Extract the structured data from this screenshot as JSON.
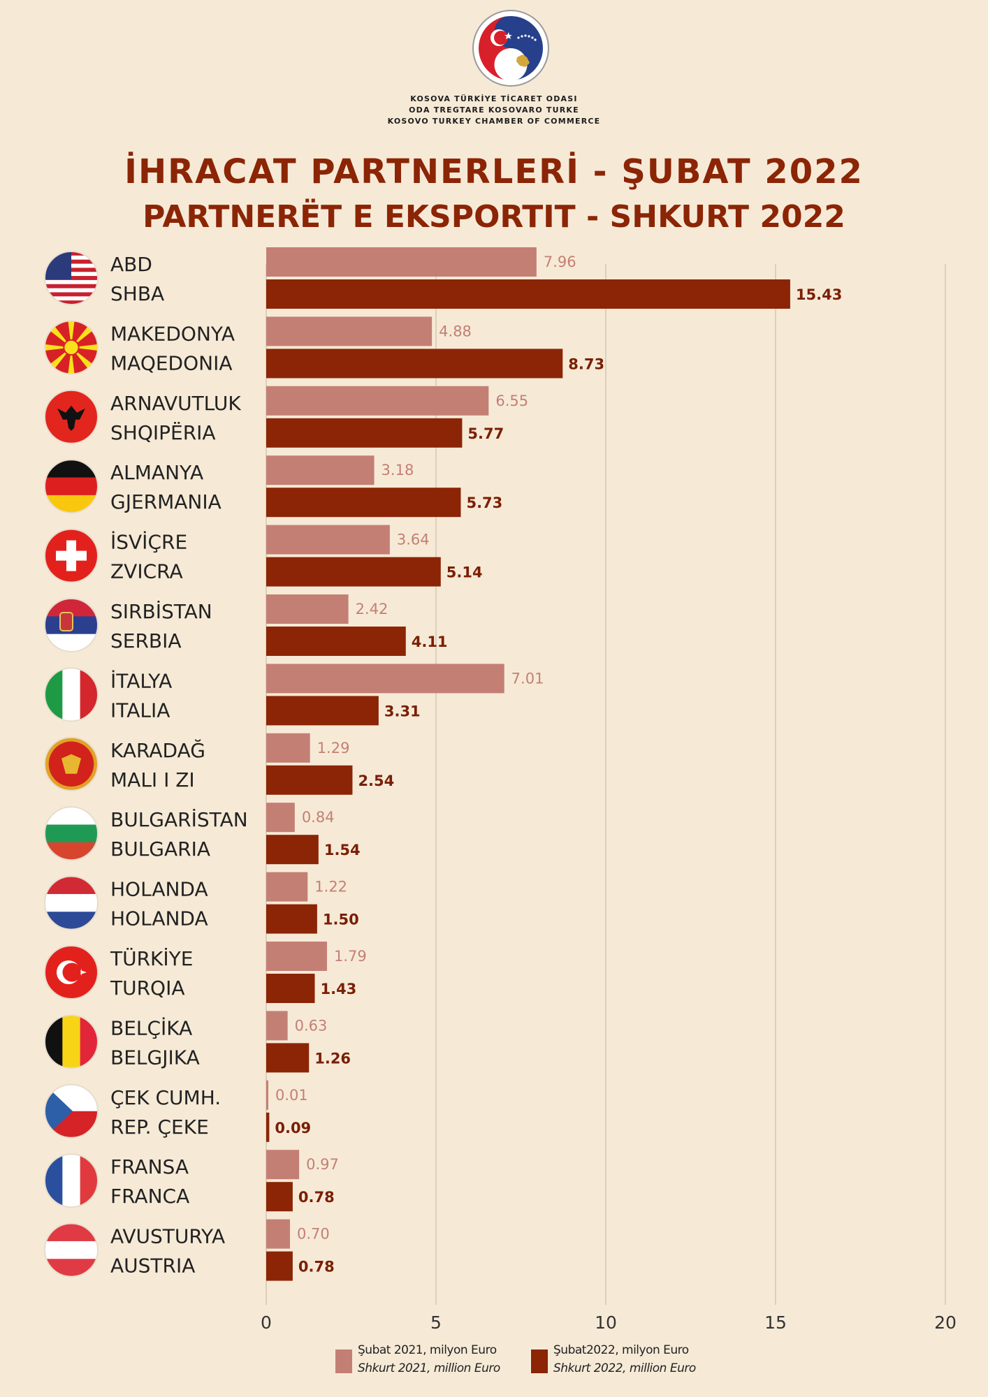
{
  "header": {
    "org_lines": [
      "KOSOVA TÜRKİYE TİCARET ODASI",
      "ODA TREGTARE KOSOVARO TURKE",
      "KOSOVO TURKEY CHAMBER OF COMMERCE"
    ],
    "title_tr": "İHRACAT PARTNERLERİ - ŞUBAT 2022",
    "title_sq": "PARTNERËT E EKSPORTIT - SHKURT 2022"
  },
  "colors": {
    "background": "#f6ead7",
    "series_2021": "#c47f74",
    "series_2022": "#8b2506",
    "title": "#8b2506"
  },
  "chart_data": {
    "type": "bar",
    "orientation": "horizontal",
    "title": "İHRACAT PARTNERLERİ - ŞUBAT 2022 / PARTNERËT E EKSPORTIT - SHKURT 2022",
    "xlim": [
      0,
      20
    ],
    "xticks": [
      0,
      5,
      10,
      15,
      20
    ],
    "grid": "vertical",
    "categories": [
      {
        "tr": "ABD",
        "sq": "SHBA",
        "flag": "usa-flag-icon"
      },
      {
        "tr": "MAKEDONYA",
        "sq": "MAQEDONIA",
        "flag": "north-macedonia-flag-icon"
      },
      {
        "tr": "ARNAVUTLUK",
        "sq": "SHQIPËRIA",
        "flag": "albania-flag-icon"
      },
      {
        "tr": "ALMANYA",
        "sq": "GJERMANIA",
        "flag": "germany-flag-icon"
      },
      {
        "tr": "İSVİÇRE",
        "sq": "ZVICRA",
        "flag": "switzerland-flag-icon"
      },
      {
        "tr": "SIRBİSTAN",
        "sq": "SERBIA",
        "flag": "serbia-flag-icon"
      },
      {
        "tr": "İTALYA",
        "sq": "ITALIA",
        "flag": "italy-flag-icon"
      },
      {
        "tr": "KARADAĞ",
        "sq": "MALI I ZI",
        "flag": "montenegro-flag-icon"
      },
      {
        "tr": "BULGARİSTAN",
        "sq": "BULGARIA",
        "flag": "bulgaria-flag-icon"
      },
      {
        "tr": "HOLANDA",
        "sq": "HOLANDA",
        "flag": "netherlands-flag-icon"
      },
      {
        "tr": "TÜRKİYE",
        "sq": "TURQIA",
        "flag": "turkey-flag-icon"
      },
      {
        "tr": "BELÇİKA",
        "sq": "BELGJIKA",
        "flag": "belgium-flag-icon"
      },
      {
        "tr": "ÇEK CUMH.",
        "sq": "REP. ÇEKE",
        "flag": "czech-flag-icon"
      },
      {
        "tr": "FRANSA",
        "sq": "FRANCA",
        "flag": "france-flag-icon"
      },
      {
        "tr": "AVUSTURYA",
        "sq": "AUSTRIA",
        "flag": "austria-flag-icon"
      }
    ],
    "series": [
      {
        "name": "Şubat 2021, milyon Euro / Shkurt 2021, million Euro",
        "values": [
          7.96,
          4.88,
          6.55,
          3.18,
          3.64,
          2.42,
          7.01,
          1.29,
          0.84,
          1.22,
          1.79,
          0.63,
          0.01,
          0.97,
          0.7
        ],
        "labels": [
          "7.96",
          "4.88",
          "6.55",
          "3.18",
          "3.64",
          "2.42",
          "7.01",
          "1.29",
          "0.84",
          "1.22",
          "1.79",
          "0.63",
          "0.01",
          "0.97",
          "0.70"
        ]
      },
      {
        "name": "Şubat2022, milyon Euro / Shkurt 2022, million Euro",
        "values": [
          15.43,
          8.73,
          5.77,
          5.73,
          5.14,
          4.11,
          3.31,
          2.54,
          1.54,
          1.5,
          1.43,
          1.26,
          0.09,
          0.78,
          0.78
        ],
        "labels": [
          "15.43",
          "8.73",
          "5.77",
          "5.73",
          "5.14",
          "4.11",
          "3.31",
          "2.54",
          "1.54",
          "1.50",
          "1.43",
          "1.26",
          "0.09",
          "0.78",
          "0.78"
        ]
      }
    ]
  },
  "legend": {
    "s2021_line1": "Şubat 2021, milyon Euro",
    "s2021_line2": "Shkurt 2021, million Euro",
    "s2022_line1": "Şubat2022, milyon Euro",
    "s2022_line2": "Shkurt 2022, million Euro"
  }
}
